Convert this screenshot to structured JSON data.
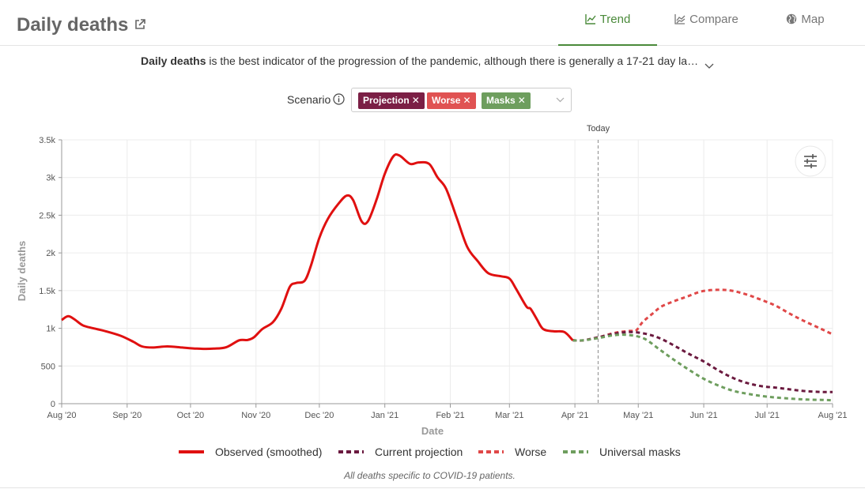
{
  "header": {
    "title": "Daily deaths",
    "tabs": [
      {
        "label": "Trend",
        "icon": "trend-icon",
        "active": true
      },
      {
        "label": "Compare",
        "icon": "compare-icon",
        "active": false
      },
      {
        "label": "Map",
        "icon": "globe-icon",
        "active": false
      }
    ]
  },
  "description": {
    "bold": "Daily deaths",
    "text": " is the best indicator of the progression of the pandemic, although there is generally a 17-21 day la…"
  },
  "scenario": {
    "label": "Scenario",
    "chips": [
      {
        "label": "Projection",
        "color": "#7b1f45"
      },
      {
        "label": "Worse",
        "color": "#e05252"
      },
      {
        "label": "Masks",
        "color": "#6e9e5e"
      }
    ]
  },
  "colors": {
    "observed": "#e01010",
    "projection": "#6b1a3f",
    "worse": "#e04848",
    "masks": "#6e9e5e",
    "today_line": "#999999"
  },
  "chart_data": {
    "type": "line",
    "title": "",
    "xlabel": "Date",
    "ylabel": "Daily deaths",
    "today_label": "Today",
    "today_x": "2021-04-12",
    "ylim": [
      0,
      3500
    ],
    "xlim": [
      "2020-08-01",
      "2021-08-01"
    ],
    "yticks": [
      {
        "value": 0,
        "label": "0"
      },
      {
        "value": 500,
        "label": "500"
      },
      {
        "value": 1000,
        "label": "1k"
      },
      {
        "value": 1500,
        "label": "1.5k"
      },
      {
        "value": 2000,
        "label": "2k"
      },
      {
        "value": 2500,
        "label": "2.5k"
      },
      {
        "value": 3000,
        "label": "3k"
      },
      {
        "value": 3500,
        "label": "3.5k"
      }
    ],
    "xticks": [
      {
        "date": "2020-08-01",
        "label": "Aug '20"
      },
      {
        "date": "2020-09-01",
        "label": "Sep '20"
      },
      {
        "date": "2020-10-01",
        "label": "Oct '20"
      },
      {
        "date": "2020-11-01",
        "label": "Nov '20"
      },
      {
        "date": "2020-12-01",
        "label": "Dec '20"
      },
      {
        "date": "2021-01-01",
        "label": "Jan '21"
      },
      {
        "date": "2021-02-01",
        "label": "Feb '21"
      },
      {
        "date": "2021-03-01",
        "label": "Mar '21"
      },
      {
        "date": "2021-04-01",
        "label": "Apr '21"
      },
      {
        "date": "2021-05-01",
        "label": "May '21"
      },
      {
        "date": "2021-06-01",
        "label": "Jun '21"
      },
      {
        "date": "2021-07-01",
        "label": "Jul '21"
      },
      {
        "date": "2021-08-01",
        "label": "Aug '21"
      }
    ],
    "grid": true,
    "legend_position": "bottom",
    "series": [
      {
        "name": "Observed (smoothed)",
        "key": "observed",
        "style": "solid",
        "points": [
          [
            "2020-08-01",
            1110
          ],
          [
            "2020-08-04",
            1160
          ],
          [
            "2020-08-07",
            1120
          ],
          [
            "2020-08-11",
            1040
          ],
          [
            "2020-08-16",
            1000
          ],
          [
            "2020-08-22",
            960
          ],
          [
            "2020-08-29",
            900
          ],
          [
            "2020-09-04",
            820
          ],
          [
            "2020-09-08",
            760
          ],
          [
            "2020-09-13",
            745
          ],
          [
            "2020-09-20",
            760
          ],
          [
            "2020-09-27",
            745
          ],
          [
            "2020-10-04",
            730
          ],
          [
            "2020-10-12",
            730
          ],
          [
            "2020-10-18",
            750
          ],
          [
            "2020-10-24",
            840
          ],
          [
            "2020-10-28",
            845
          ],
          [
            "2020-10-31",
            880
          ],
          [
            "2020-11-04",
            990
          ],
          [
            "2020-11-09",
            1080
          ],
          [
            "2020-11-13",
            1260
          ],
          [
            "2020-11-17",
            1550
          ],
          [
            "2020-11-20",
            1600
          ],
          [
            "2020-11-24",
            1630
          ],
          [
            "2020-11-27",
            1830
          ],
          [
            "2020-12-01",
            2200
          ],
          [
            "2020-12-05",
            2450
          ],
          [
            "2020-12-10",
            2650
          ],
          [
            "2020-12-14",
            2760
          ],
          [
            "2020-12-17",
            2700
          ],
          [
            "2020-12-21",
            2420
          ],
          [
            "2020-12-24",
            2420
          ],
          [
            "2020-12-28",
            2700
          ],
          [
            "2021-01-01",
            3050
          ],
          [
            "2021-01-05",
            3280
          ],
          [
            "2021-01-08",
            3290
          ],
          [
            "2021-01-13",
            3180
          ],
          [
            "2021-01-17",
            3200
          ],
          [
            "2021-01-22",
            3180
          ],
          [
            "2021-01-26",
            3000
          ],
          [
            "2021-01-30",
            2850
          ],
          [
            "2021-02-04",
            2470
          ],
          [
            "2021-02-09",
            2080
          ],
          [
            "2021-02-14",
            1890
          ],
          [
            "2021-02-19",
            1730
          ],
          [
            "2021-02-25",
            1690
          ],
          [
            "2021-03-01",
            1660
          ],
          [
            "2021-03-04",
            1530
          ],
          [
            "2021-03-09",
            1290
          ],
          [
            "2021-03-11",
            1260
          ],
          [
            "2021-03-14",
            1120
          ],
          [
            "2021-03-17",
            990
          ],
          [
            "2021-03-22",
            960
          ],
          [
            "2021-03-27",
            950
          ],
          [
            "2021-03-31",
            840
          ]
        ]
      },
      {
        "name": "Current projection",
        "key": "projection",
        "style": "dashed",
        "points": [
          [
            "2021-03-31",
            840
          ],
          [
            "2021-04-05",
            840
          ],
          [
            "2021-04-12",
            880
          ],
          [
            "2021-04-20",
            930
          ],
          [
            "2021-04-27",
            950
          ],
          [
            "2021-05-04",
            930
          ],
          [
            "2021-05-11",
            870
          ],
          [
            "2021-05-18",
            770
          ],
          [
            "2021-05-25",
            660
          ],
          [
            "2021-06-01",
            560
          ],
          [
            "2021-06-08",
            440
          ],
          [
            "2021-06-15",
            340
          ],
          [
            "2021-06-22",
            270
          ],
          [
            "2021-06-29",
            230
          ],
          [
            "2021-07-06",
            210
          ],
          [
            "2021-07-13",
            185
          ],
          [
            "2021-07-20",
            165
          ],
          [
            "2021-07-27",
            155
          ],
          [
            "2021-08-01",
            155
          ]
        ]
      },
      {
        "name": "Worse",
        "key": "worse",
        "style": "dashed",
        "points": [
          [
            "2021-03-31",
            840
          ],
          [
            "2021-04-05",
            840
          ],
          [
            "2021-04-12",
            880
          ],
          [
            "2021-04-20",
            940
          ],
          [
            "2021-04-27",
            965
          ],
          [
            "2021-04-30",
            970
          ],
          [
            "2021-05-03",
            1080
          ],
          [
            "2021-05-08",
            1200
          ],
          [
            "2021-05-12",
            1290
          ],
          [
            "2021-05-18",
            1360
          ],
          [
            "2021-05-24",
            1420
          ],
          [
            "2021-05-31",
            1490
          ],
          [
            "2021-06-07",
            1510
          ],
          [
            "2021-06-14",
            1500
          ],
          [
            "2021-06-21",
            1450
          ],
          [
            "2021-06-28",
            1380
          ],
          [
            "2021-07-05",
            1300
          ],
          [
            "2021-07-12",
            1190
          ],
          [
            "2021-07-19",
            1090
          ],
          [
            "2021-07-26",
            1000
          ],
          [
            "2021-08-01",
            920
          ]
        ]
      },
      {
        "name": "Universal masks",
        "key": "masks",
        "style": "dashed",
        "points": [
          [
            "2021-03-31",
            840
          ],
          [
            "2021-04-05",
            840
          ],
          [
            "2021-04-12",
            870
          ],
          [
            "2021-04-20",
            910
          ],
          [
            "2021-04-27",
            910
          ],
          [
            "2021-05-04",
            860
          ],
          [
            "2021-05-11",
            720
          ],
          [
            "2021-05-18",
            580
          ],
          [
            "2021-05-25",
            450
          ],
          [
            "2021-06-01",
            330
          ],
          [
            "2021-06-08",
            240
          ],
          [
            "2021-06-15",
            170
          ],
          [
            "2021-06-22",
            130
          ],
          [
            "2021-06-29",
            100
          ],
          [
            "2021-07-06",
            80
          ],
          [
            "2021-07-13",
            65
          ],
          [
            "2021-07-20",
            55
          ],
          [
            "2021-07-27",
            50
          ],
          [
            "2021-08-01",
            45
          ]
        ]
      }
    ]
  },
  "footnote": "All deaths specific to COVID-19 patients."
}
